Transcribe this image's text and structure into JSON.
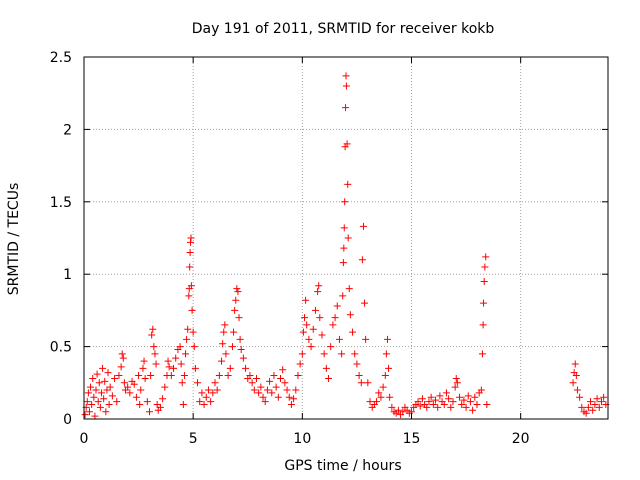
{
  "chart_data": {
    "type": "scatter",
    "title": "Day 191 of 2011, SRMTID for receiver kokb",
    "xlabel": "GPS time / hours",
    "ylabel": "SRMTID / TECUs",
    "xlim": [
      0,
      24
    ],
    "ylim": [
      0,
      2.5
    ],
    "xticks": [
      0,
      5,
      10,
      15,
      20
    ],
    "xtick_labels": [
      "0",
      "5",
      "10",
      "15",
      "20"
    ],
    "yticks": [
      0,
      0.5,
      1,
      1.5,
      2,
      2.5
    ],
    "ytick_labels": [
      "0",
      "0.5",
      "1",
      "1.5",
      "2",
      "2.5"
    ],
    "grid": true,
    "marker": "+",
    "series": [
      {
        "name": "kokb",
        "color": "#ff0000",
        "points": [
          [
            0.05,
            0.03
          ],
          [
            0.1,
            0.08
          ],
          [
            0.15,
            0.12
          ],
          [
            0.2,
            0.18
          ],
          [
            0.25,
            0.05
          ],
          [
            0.3,
            0.22
          ],
          [
            0.35,
            0.1
          ],
          [
            0.4,
            0.28
          ],
          [
            0.45,
            0.15
          ],
          [
            0.5,
            0.02
          ],
          [
            0.55,
            0.2
          ],
          [
            0.6,
            0.31
          ],
          [
            0.65,
            0.12
          ],
          [
            0.7,
            0.25
          ],
          [
            0.75,
            0.08
          ],
          [
            0.8,
            0.18
          ],
          [
            0.85,
            0.35
          ],
          [
            0.9,
            0.14
          ],
          [
            0.95,
            0.26
          ],
          [
            1.0,
            0.05
          ],
          [
            1.05,
            0.2
          ],
          [
            1.1,
            0.32
          ],
          [
            1.15,
            0.1
          ],
          [
            1.2,
            0.22
          ],
          [
            1.3,
            0.16
          ],
          [
            1.4,
            0.28
          ],
          [
            1.5,
            0.12
          ],
          [
            1.6,
            0.3
          ],
          [
            1.7,
            0.36
          ],
          [
            1.75,
            0.45
          ],
          [
            1.8,
            0.42
          ],
          [
            1.85,
            0.25
          ],
          [
            1.9,
            0.2
          ],
          [
            2.0,
            0.22
          ],
          [
            2.1,
            0.18
          ],
          [
            2.2,
            0.26
          ],
          [
            2.3,
            0.24
          ],
          [
            2.4,
            0.15
          ],
          [
            2.5,
            0.3
          ],
          [
            2.55,
            0.1
          ],
          [
            2.6,
            0.2
          ],
          [
            2.7,
            0.35
          ],
          [
            2.75,
            0.4
          ],
          [
            2.8,
            0.28
          ],
          [
            2.9,
            0.12
          ],
          [
            3.0,
            0.05
          ],
          [
            3.05,
            0.3
          ],
          [
            3.1,
            0.58
          ],
          [
            3.15,
            0.62
          ],
          [
            3.2,
            0.5
          ],
          [
            3.25,
            0.45
          ],
          [
            3.3,
            0.38
          ],
          [
            3.35,
            0.1
          ],
          [
            3.4,
            0.06
          ],
          [
            3.5,
            0.08
          ],
          [
            3.6,
            0.14
          ],
          [
            3.7,
            0.22
          ],
          [
            3.8,
            0.3
          ],
          [
            3.85,
            0.4
          ],
          [
            3.9,
            0.36
          ],
          [
            4.0,
            0.3
          ],
          [
            4.1,
            0.35
          ],
          [
            4.2,
            0.42
          ],
          [
            4.3,
            0.48
          ],
          [
            4.4,
            0.5
          ],
          [
            4.45,
            0.38
          ],
          [
            4.5,
            0.25
          ],
          [
            4.55,
            0.1
          ],
          [
            4.6,
            0.3
          ],
          [
            4.65,
            0.45
          ],
          [
            4.7,
            0.55
          ],
          [
            4.75,
            0.62
          ],
          [
            4.8,
            0.85
          ],
          [
            4.82,
            0.9
          ],
          [
            4.84,
            1.05
          ],
          [
            4.86,
            1.15
          ],
          [
            4.88,
            1.22
          ],
          [
            4.9,
            1.25
          ],
          [
            4.92,
            0.92
          ],
          [
            4.95,
            0.75
          ],
          [
            5.0,
            0.6
          ],
          [
            5.05,
            0.5
          ],
          [
            5.1,
            0.35
          ],
          [
            5.2,
            0.25
          ],
          [
            5.3,
            0.12
          ],
          [
            5.4,
            0.18
          ],
          [
            5.5,
            0.1
          ],
          [
            5.6,
            0.15
          ],
          [
            5.7,
            0.2
          ],
          [
            5.8,
            0.12
          ],
          [
            5.9,
            0.18
          ],
          [
            6.0,
            0.25
          ],
          [
            6.1,
            0.2
          ],
          [
            6.2,
            0.3
          ],
          [
            6.3,
            0.4
          ],
          [
            6.35,
            0.52
          ],
          [
            6.4,
            0.6
          ],
          [
            6.45,
            0.65
          ],
          [
            6.5,
            0.45
          ],
          [
            6.6,
            0.3
          ],
          [
            6.7,
            0.35
          ],
          [
            6.8,
            0.5
          ],
          [
            6.85,
            0.6
          ],
          [
            6.9,
            0.75
          ],
          [
            6.95,
            0.82
          ],
          [
            7.0,
            0.9
          ],
          [
            7.05,
            0.88
          ],
          [
            7.1,
            0.7
          ],
          [
            7.15,
            0.55
          ],
          [
            7.2,
            0.48
          ],
          [
            7.3,
            0.42
          ],
          [
            7.4,
            0.35
          ],
          [
            7.5,
            0.28
          ],
          [
            7.6,
            0.3
          ],
          [
            7.7,
            0.25
          ],
          [
            7.8,
            0.2
          ],
          [
            7.9,
            0.28
          ],
          [
            8.0,
            0.18
          ],
          [
            8.1,
            0.22
          ],
          [
            8.2,
            0.15
          ],
          [
            8.3,
            0.12
          ],
          [
            8.4,
            0.2
          ],
          [
            8.5,
            0.26
          ],
          [
            8.6,
            0.18
          ],
          [
            8.7,
            0.3
          ],
          [
            8.8,
            0.22
          ],
          [
            8.9,
            0.15
          ],
          [
            9.0,
            0.28
          ],
          [
            9.1,
            0.34
          ],
          [
            9.2,
            0.25
          ],
          [
            9.3,
            0.2
          ],
          [
            9.4,
            0.15
          ],
          [
            9.5,
            0.1
          ],
          [
            9.6,
            0.14
          ],
          [
            9.7,
            0.2
          ],
          [
            9.8,
            0.3
          ],
          [
            9.9,
            0.38
          ],
          [
            10.0,
            0.45
          ],
          [
            10.05,
            0.6
          ],
          [
            10.1,
            0.7
          ],
          [
            10.15,
            0.82
          ],
          [
            10.2,
            0.65
          ],
          [
            10.3,
            0.55
          ],
          [
            10.4,
            0.5
          ],
          [
            10.5,
            0.62
          ],
          [
            10.6,
            0.75
          ],
          [
            10.7,
            0.88
          ],
          [
            10.75,
            0.92
          ],
          [
            10.8,
            0.7
          ],
          [
            10.9,
            0.58
          ],
          [
            11.0,
            0.45
          ],
          [
            11.1,
            0.35
          ],
          [
            11.2,
            0.28
          ],
          [
            11.3,
            0.5
          ],
          [
            11.4,
            0.65
          ],
          [
            11.5,
            0.7
          ],
          [
            11.6,
            0.78
          ],
          [
            11.7,
            0.55
          ],
          [
            11.8,
            0.45
          ],
          [
            11.85,
            0.85
          ],
          [
            11.88,
            1.08
          ],
          [
            11.9,
            1.18
          ],
          [
            11.92,
            1.32
          ],
          [
            11.94,
            1.5
          ],
          [
            11.96,
            1.88
          ],
          [
            11.98,
            2.15
          ],
          [
            12.0,
            2.37
          ],
          [
            12.02,
            2.3
          ],
          [
            12.05,
            1.9
          ],
          [
            12.08,
            1.62
          ],
          [
            12.1,
            1.25
          ],
          [
            12.15,
            0.9
          ],
          [
            12.2,
            0.72
          ],
          [
            12.3,
            0.6
          ],
          [
            12.4,
            0.45
          ],
          [
            12.5,
            0.38
          ],
          [
            12.6,
            0.3
          ],
          [
            12.7,
            0.25
          ],
          [
            12.75,
            1.1
          ],
          [
            12.8,
            1.33
          ],
          [
            12.85,
            0.8
          ],
          [
            12.9,
            0.55
          ],
          [
            13.0,
            0.25
          ],
          [
            13.1,
            0.12
          ],
          [
            13.2,
            0.08
          ],
          [
            13.3,
            0.1
          ],
          [
            13.4,
            0.12
          ],
          [
            13.5,
            0.18
          ],
          [
            13.6,
            0.15
          ],
          [
            13.7,
            0.22
          ],
          [
            13.8,
            0.3
          ],
          [
            13.85,
            0.45
          ],
          [
            13.9,
            0.55
          ],
          [
            13.95,
            0.35
          ],
          [
            14.0,
            0.15
          ],
          [
            14.1,
            0.08
          ],
          [
            14.2,
            0.05
          ],
          [
            14.3,
            0.04
          ],
          [
            14.4,
            0.06
          ],
          [
            14.5,
            0.03
          ],
          [
            14.6,
            0.05
          ],
          [
            14.7,
            0.08
          ],
          [
            14.8,
            0.06
          ],
          [
            14.9,
            0.04
          ],
          [
            15.0,
            0.05
          ],
          [
            15.1,
            0.08
          ],
          [
            15.2,
            0.1
          ],
          [
            15.3,
            0.12
          ],
          [
            15.4,
            0.09
          ],
          [
            15.5,
            0.14
          ],
          [
            15.6,
            0.1
          ],
          [
            15.7,
            0.08
          ],
          [
            15.8,
            0.12
          ],
          [
            15.9,
            0.15
          ],
          [
            16.0,
            0.1
          ],
          [
            16.1,
            0.13
          ],
          [
            16.2,
            0.08
          ],
          [
            16.3,
            0.16
          ],
          [
            16.4,
            0.12
          ],
          [
            16.5,
            0.1
          ],
          [
            16.6,
            0.18
          ],
          [
            16.7,
            0.14
          ],
          [
            16.8,
            0.08
          ],
          [
            16.9,
            0.12
          ],
          [
            17.0,
            0.22
          ],
          [
            17.05,
            0.28
          ],
          [
            17.1,
            0.25
          ],
          [
            17.2,
            0.15
          ],
          [
            17.3,
            0.1
          ],
          [
            17.4,
            0.13
          ],
          [
            17.5,
            0.08
          ],
          [
            17.6,
            0.16
          ],
          [
            17.7,
            0.12
          ],
          [
            17.8,
            0.06
          ],
          [
            17.9,
            0.15
          ],
          [
            18.0,
            0.1
          ],
          [
            18.1,
            0.18
          ],
          [
            18.2,
            0.2
          ],
          [
            18.25,
            0.45
          ],
          [
            18.28,
            0.65
          ],
          [
            18.3,
            0.8
          ],
          [
            18.33,
            0.95
          ],
          [
            18.36,
            1.05
          ],
          [
            18.4,
            1.12
          ],
          [
            18.45,
            0.1
          ],
          [
            22.4,
            0.25
          ],
          [
            22.45,
            0.32
          ],
          [
            22.5,
            0.38
          ],
          [
            22.55,
            0.3
          ],
          [
            22.6,
            0.2
          ],
          [
            22.7,
            0.15
          ],
          [
            22.8,
            0.08
          ],
          [
            22.9,
            0.05
          ],
          [
            23.0,
            0.04
          ],
          [
            23.1,
            0.08
          ],
          [
            23.2,
            0.12
          ],
          [
            23.3,
            0.06
          ],
          [
            23.4,
            0.1
          ],
          [
            23.5,
            0.14
          ],
          [
            23.6,
            0.08
          ],
          [
            23.7,
            0.12
          ],
          [
            23.8,
            0.15
          ],
          [
            23.9,
            0.1
          ]
        ]
      }
    ]
  }
}
